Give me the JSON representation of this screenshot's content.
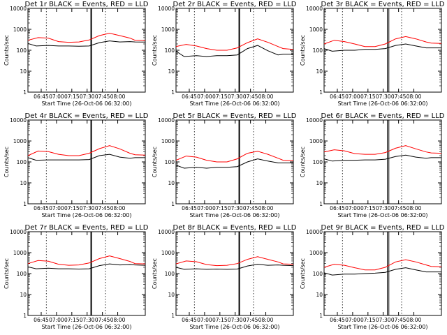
{
  "panels": [
    {
      "title": "Det 1r BLACK = Events, RED = LLD",
      "vlines": [
        {
          "t": "07:34",
          "w": 2
        }
      ]
    },
    {
      "title": "Det 2r BLACK = Events, RED = LLD",
      "vlines": [
        {
          "t": "07:34",
          "w": 2
        }
      ]
    },
    {
      "title": "Det 3r BLACK = Events, RED = LLD",
      "vlines": [
        {
          "t": "07:34",
          "w": 1
        },
        {
          "t": "07:35.5",
          "w": 1
        }
      ]
    },
    {
      "title": "Det 4r BLACK = Events, RED = LLD",
      "vlines": [
        {
          "t": "07:34",
          "w": 2
        }
      ]
    },
    {
      "title": "Det 5r BLACK = Events, RED = LLD",
      "vlines": [
        {
          "t": "07:34",
          "w": 2
        }
      ]
    },
    {
      "title": "Det 6r BLACK = Events, RED = LLD",
      "vlines": [
        {
          "t": "07:34",
          "w": 1
        },
        {
          "t": "07:35.5",
          "w": 1
        }
      ]
    },
    {
      "title": "Det 7r BLACK = Events, RED = LLD",
      "vlines": [
        {
          "t": "07:34",
          "w": 2
        }
      ]
    },
    {
      "title": "Det 8r BLACK = Events, RED = LLD",
      "vlines": [
        {
          "t": "07:34",
          "w": 2
        }
      ]
    },
    {
      "title": "Det 9r BLACK = Events, RED = LLD",
      "vlines": [
        {
          "t": "07:34",
          "w": 1
        },
        {
          "t": "07:35.5",
          "w": 1
        }
      ]
    }
  ],
  "chart_data": {
    "type": "line",
    "layout": "3x3 grid",
    "xlabel": "Start Time (26-Oct-06 06:32:00)",
    "ylabel": "Counts/sec",
    "y_scale": "log",
    "ylim": [
      1,
      10000
    ],
    "yticks": [
      "1",
      "10",
      "100",
      "1000",
      "10000"
    ],
    "xlim_minutes_from_start": [
      0,
      115
    ],
    "xticks": [
      "06:45",
      "07:00",
      "07:15",
      "07:30",
      "07:45",
      "08:00"
    ],
    "dotted_lines_at": [
      "06:50",
      "07:48"
    ],
    "colors": {
      "events": "#000000",
      "lld": "#ff0000"
    },
    "series_names": {
      "events": "BLACK = Events",
      "lld": "RED = LLD"
    },
    "series": [
      {
        "panel": 1,
        "lld": {
          "t": [
            0,
            10,
            20,
            30,
            40,
            50,
            60,
            70,
            80,
            90,
            100,
            105,
            115
          ],
          "v": [
            300,
            400,
            380,
            260,
            240,
            250,
            310,
            500,
            650,
            500,
            380,
            300,
            290
          ]
        },
        "events": {
          "t": [
            0,
            8,
            20,
            30,
            40,
            50,
            60,
            70,
            80,
            90,
            100,
            105,
            115
          ],
          "v": [
            210,
            160,
            170,
            160,
            160,
            155,
            160,
            230,
            280,
            250,
            260,
            250,
            245
          ]
        }
      },
      {
        "panel": 2,
        "lld": {
          "t": [
            0,
            10,
            20,
            30,
            40,
            50,
            60,
            70,
            80,
            90,
            100,
            105,
            115
          ],
          "v": [
            150,
            190,
            160,
            120,
            100,
            100,
            130,
            230,
            350,
            240,
            150,
            120,
            110
          ]
        },
        "events": {
          "t": [
            0,
            8,
            20,
            30,
            40,
            50,
            60,
            70,
            80,
            90,
            100,
            105,
            115
          ],
          "v": [
            90,
            50,
            55,
            50,
            55,
            55,
            60,
            120,
            170,
            95,
            60,
            65,
            65
          ]
        }
      },
      {
        "panel": 3,
        "lld": {
          "t": [
            0,
            10,
            20,
            30,
            40,
            50,
            60,
            70,
            80,
            90,
            100,
            105,
            115
          ],
          "v": [
            200,
            300,
            260,
            200,
            150,
            150,
            200,
            350,
            450,
            350,
            250,
            220,
            210
          ]
        },
        "events": {
          "t": [
            0,
            8,
            20,
            30,
            40,
            50,
            60,
            70,
            80,
            90,
            100,
            105,
            115
          ],
          "v": [
            120,
            90,
            100,
            100,
            110,
            110,
            120,
            170,
            200,
            160,
            130,
            130,
            130
          ]
        }
      },
      {
        "panel": 4,
        "lld": {
          "t": [
            0,
            10,
            20,
            30,
            40,
            50,
            60,
            70,
            80,
            90,
            100,
            105,
            115
          ],
          "v": [
            200,
            330,
            310,
            230,
            200,
            200,
            260,
            430,
            600,
            420,
            260,
            220,
            210
          ]
        },
        "events": {
          "t": [
            0,
            8,
            20,
            30,
            40,
            50,
            60,
            70,
            80,
            90,
            100,
            105,
            115
          ],
          "v": [
            160,
            120,
            125,
            125,
            125,
            125,
            130,
            200,
            230,
            170,
            150,
            160,
            160
          ]
        }
      },
      {
        "panel": 5,
        "lld": {
          "t": [
            0,
            10,
            20,
            30,
            40,
            50,
            60,
            70,
            80,
            90,
            100,
            105,
            115
          ],
          "v": [
            120,
            190,
            170,
            120,
            100,
            100,
            140,
            260,
            320,
            230,
            150,
            120,
            115
          ]
        },
        "events": {
          "t": [
            0,
            8,
            20,
            30,
            40,
            50,
            60,
            70,
            80,
            90,
            100,
            105,
            115
          ],
          "v": [
            70,
            50,
            55,
            50,
            55,
            55,
            60,
            100,
            140,
            110,
            90,
            90,
            90
          ]
        }
      },
      {
        "panel": 6,
        "lld": {
          "t": [
            0,
            10,
            20,
            30,
            40,
            50,
            60,
            70,
            80,
            90,
            100,
            105,
            115
          ],
          "v": [
            300,
            380,
            340,
            250,
            230,
            230,
            280,
            450,
            600,
            420,
            300,
            270,
            260
          ]
        },
        "events": {
          "t": [
            0,
            8,
            20,
            30,
            40,
            50,
            60,
            70,
            80,
            90,
            100,
            105,
            115
          ],
          "v": [
            140,
            110,
            120,
            120,
            125,
            125,
            135,
            180,
            210,
            170,
            150,
            160,
            160
          ]
        }
      },
      {
        "panel": 7,
        "lld": {
          "t": [
            0,
            10,
            20,
            30,
            40,
            50,
            60,
            70,
            80,
            90,
            100,
            105,
            115
          ],
          "v": [
            300,
            420,
            390,
            280,
            250,
            260,
            320,
            520,
            700,
            520,
            380,
            300,
            290
          ]
        },
        "events": {
          "t": [
            0,
            8,
            20,
            30,
            40,
            50,
            60,
            70,
            80,
            90,
            100,
            105,
            115
          ],
          "v": [
            210,
            170,
            180,
            170,
            170,
            165,
            170,
            240,
            290,
            260,
            270,
            260,
            250
          ]
        }
      },
      {
        "panel": 8,
        "lld": {
          "t": [
            0,
            10,
            20,
            30,
            40,
            50,
            60,
            70,
            80,
            90,
            100,
            105,
            115
          ],
          "v": [
            290,
            400,
            370,
            270,
            240,
            250,
            300,
            480,
            640,
            480,
            360,
            290,
            280
          ]
        },
        "events": {
          "t": [
            0,
            8,
            20,
            30,
            40,
            50,
            60,
            70,
            80,
            90,
            100,
            105,
            115
          ],
          "v": [
            200,
            160,
            170,
            160,
            165,
            160,
            165,
            230,
            280,
            250,
            260,
            250,
            240
          ]
        }
      },
      {
        "panel": 9,
        "lld": {
          "t": [
            0,
            10,
            20,
            30,
            40,
            50,
            60,
            70,
            80,
            90,
            100,
            105,
            115
          ],
          "v": [
            200,
            280,
            250,
            190,
            150,
            150,
            200,
            360,
            460,
            360,
            260,
            220,
            210
          ]
        },
        "events": {
          "t": [
            0,
            8,
            20,
            30,
            40,
            50,
            60,
            70,
            80,
            90,
            100,
            105,
            115
          ],
          "v": [
            110,
            85,
            95,
            95,
            100,
            105,
            115,
            160,
            190,
            150,
            120,
            120,
            120
          ]
        }
      }
    ]
  }
}
